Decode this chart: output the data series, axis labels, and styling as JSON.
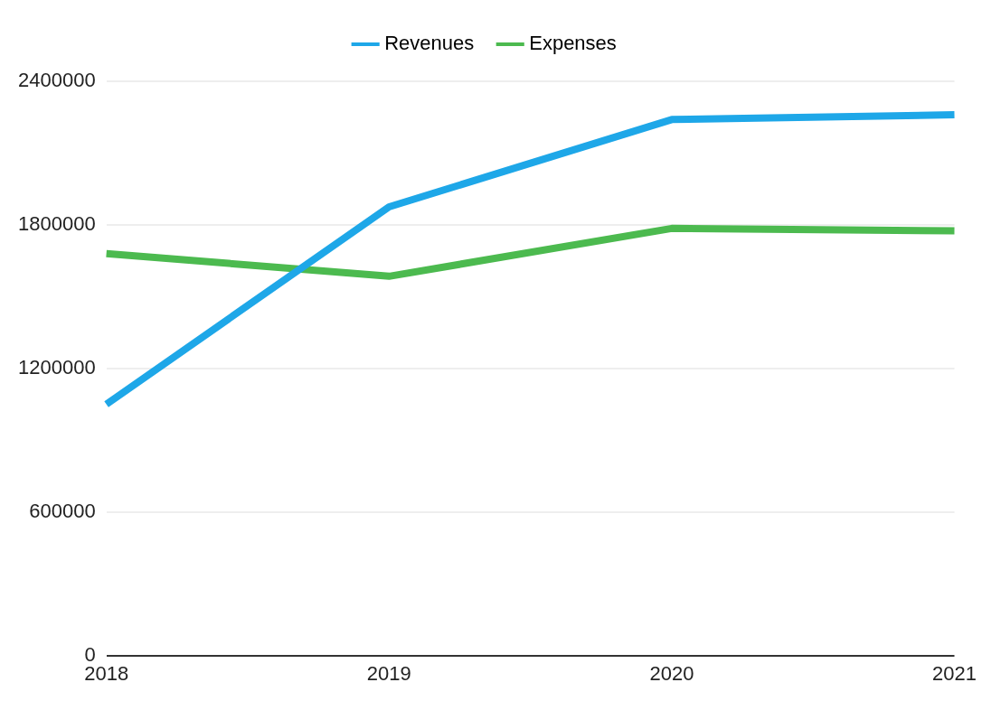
{
  "chart_data": {
    "type": "line",
    "categories": [
      "2018",
      "2019",
      "2020",
      "2021"
    ],
    "series": [
      {
        "name": "Revenues",
        "color": "#1ea7e8",
        "values": [
          1050000,
          1875000,
          2240000,
          2260000
        ]
      },
      {
        "name": "Expenses",
        "color": "#4cba4f",
        "values": [
          1680000,
          1585000,
          1785000,
          1775000
        ]
      }
    ],
    "ylim": [
      0,
      2400000
    ],
    "yticks": [
      0,
      600000,
      1200000,
      1800000,
      2400000
    ],
    "grid": "y",
    "legend": "top",
    "marker": "none",
    "line_style": "solid"
  }
}
